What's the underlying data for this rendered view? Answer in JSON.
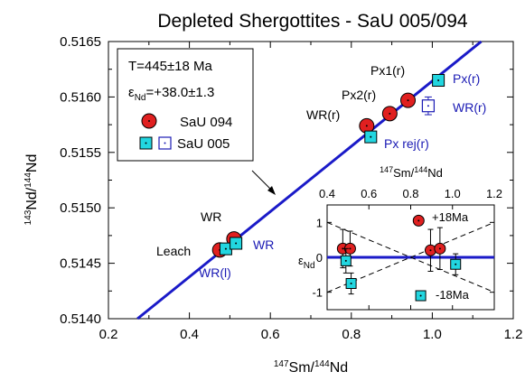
{
  "chart_data": {
    "type": "scatter",
    "title": "Depleted Shergottites - SaU 005/094",
    "x_axis": {
      "label_base": "Sm/",
      "label_mass1": "147",
      "label_mass2": "144",
      "label_tail": "Nd",
      "min": 0.2,
      "max": 1.2,
      "ticks": [
        "0.2",
        "0.4",
        "0.6",
        "0.8",
        "1.0",
        "1.2"
      ]
    },
    "y_axis": {
      "label_mass1": "143",
      "label_mass2": "144",
      "label_base": "Nd/",
      "label_tail": "Nd",
      "min": 0.514,
      "max": 0.5165,
      "ticks": [
        "0.5140",
        "0.5145",
        "0.5150",
        "0.5155",
        "0.5160",
        "0.5165"
      ]
    },
    "legend": {
      "age": "T=445±18 Ma",
      "eps_symbol": "ε",
      "eps_sub": "Nd",
      "eps_value": "=+38.0±1.3",
      "series_094": "SaU 094",
      "series_005": "SaU 005"
    },
    "isochron": {
      "slope": 0.002944,
      "intercept": 0.5132
    },
    "series": [
      {
        "name": "SaU 094",
        "marker": "red-circle",
        "points": [
          {
            "x": 0.475,
            "y": 0.51462
          },
          {
            "x": 0.51,
            "y": 0.51472
          },
          {
            "x": 0.838,
            "y": 0.51574
          },
          {
            "x": 0.895,
            "y": 0.51585
          },
          {
            "x": 0.94,
            "y": 0.51597
          }
        ]
      },
      {
        "name": "SaU 005",
        "marker": "cyan-square",
        "points": [
          {
            "x": 0.49,
            "y": 0.51463
          },
          {
            "x": 0.515,
            "y": 0.51468
          },
          {
            "x": 0.848,
            "y": 0.51564
          },
          {
            "x": 1.015,
            "y": 0.51615
          }
        ]
      },
      {
        "name": "SaU 005",
        "marker": "open-blue-square",
        "points": [
          {
            "x": 0.99,
            "y": 0.51592,
            "err": 8e-05
          }
        ]
      }
    ],
    "point_labels": [
      {
        "text": "WR",
        "color": "black"
      },
      {
        "text": "Leach",
        "color": "black"
      },
      {
        "text": "WR",
        "color": "blue"
      },
      {
        "text": "WR(l)",
        "color": "blue"
      },
      {
        "text": "WR(r)",
        "color": "black"
      },
      {
        "text": "Px2(r)",
        "color": "black"
      },
      {
        "text": "Px1(r)",
        "color": "black"
      },
      {
        "text": "Px(r)",
        "color": "blue"
      },
      {
        "text": "WR(r)",
        "color": "blue"
      },
      {
        "text": "Px rej(r)",
        "color": "blue"
      }
    ],
    "inset": {
      "x_axis": {
        "label_mass1": "147",
        "label_mass2": "144",
        "label_base": "Sm/",
        "label_tail": "Nd",
        "min": 0.4,
        "max": 1.2,
        "ticks": [
          "0.4",
          "0.6",
          "0.8",
          "1.0",
          "1.2"
        ]
      },
      "y_axis": {
        "symbol": "ε",
        "sub": "Nd",
        "min": -1.5,
        "max": 1.5,
        "ticks": [
          "1",
          "0",
          "-1"
        ]
      },
      "plus_label": "+18Ma",
      "minus_label": "-18Ma",
      "points": [
        {
          "x": 0.475,
          "y": 0.25,
          "err": 0.55,
          "marker": "red-circle"
        },
        {
          "x": 0.51,
          "y": 0.25,
          "err": 0.5,
          "marker": "red-circle"
        },
        {
          "x": 0.49,
          "y": -0.1,
          "err": 0.35,
          "marker": "cyan-square"
        },
        {
          "x": 0.515,
          "y": -0.75,
          "err": 0.3,
          "marker": "cyan-square"
        },
        {
          "x": 0.838,
          "y": 1.05,
          "err": 0.0,
          "marker": "red-circle"
        },
        {
          "x": 0.895,
          "y": 0.2,
          "err": 0.6,
          "marker": "red-circle"
        },
        {
          "x": 0.94,
          "y": 0.25,
          "err": 0.6,
          "marker": "red-circle"
        },
        {
          "x": 0.848,
          "y": -1.1,
          "err": 0.0,
          "marker": "cyan-square"
        },
        {
          "x": 1.015,
          "y": -0.2,
          "err": 0.3,
          "marker": "cyan-square"
        }
      ]
    }
  }
}
